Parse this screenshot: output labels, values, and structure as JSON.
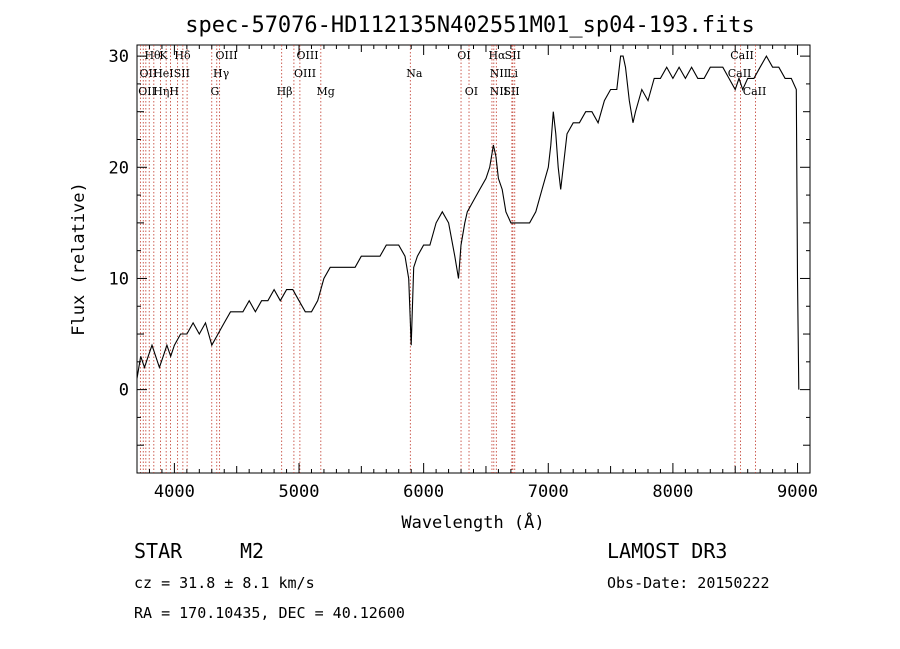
{
  "chart_data": {
    "type": "line",
    "title": "spec-57076-HD112135N402551M01_sp04-193.fits",
    "xlabel": "Wavelength (Å)",
    "ylabel": "Flux (relative)",
    "xlim": [
      3700,
      9100
    ],
    "ylim": [
      -7.5,
      31
    ],
    "xticks": [
      4000,
      5000,
      6000,
      7000,
      8000,
      9000
    ],
    "yticks": [
      0,
      10,
      20,
      30
    ],
    "grid": false,
    "series": [
      {
        "x": [
          3700,
          3730,
          3760,
          3790,
          3820,
          3850,
          3880,
          3910,
          3940,
          3970,
          4000,
          4050,
          4100,
          4150,
          4200,
          4250,
          4300,
          4350,
          4400,
          4450,
          4500,
          4550,
          4600,
          4650,
          4700,
          4750,
          4800,
          4850,
          4900,
          4950,
          5000,
          5050,
          5100,
          5150,
          5200,
          5250,
          5300,
          5350,
          5400,
          5450,
          5500,
          5550,
          5600,
          5650,
          5700,
          5750,
          5800,
          5850,
          5880,
          5900,
          5920,
          5950,
          6000,
          6050,
          6100,
          6150,
          6200,
          6250,
          6280,
          6300,
          6330,
          6350,
          6400,
          6450,
          6500,
          6530,
          6560,
          6580,
          6600,
          6630,
          6660,
          6700,
          6730,
          6760,
          6800,
          6850,
          6900,
          6950,
          7000,
          7020,
          7040,
          7060,
          7080,
          7100,
          7150,
          7200,
          7250,
          7300,
          7350,
          7400,
          7450,
          7500,
          7550,
          7580,
          7600,
          7620,
          7650,
          7680,
          7700,
          7750,
          7800,
          7850,
          7900,
          7950,
          8000,
          8050,
          8100,
          8150,
          8200,
          8250,
          8300,
          8350,
          8400,
          8450,
          8500,
          8530,
          8560,
          8600,
          8650,
          8700,
          8750,
          8800,
          8850,
          8900,
          8950,
          8990,
          9000,
          9010
        ],
        "y": [
          1,
          3,
          2,
          3,
          4,
          3,
          2,
          3,
          4,
          3,
          4,
          5,
          5,
          6,
          5,
          6,
          4,
          5,
          6,
          7,
          7,
          7,
          8,
          7,
          8,
          8,
          9,
          8,
          9,
          9,
          8,
          7,
          7,
          8,
          10,
          11,
          11,
          11,
          11,
          11,
          12,
          12,
          12,
          12,
          13,
          13,
          13,
          12,
          10,
          4,
          11,
          12,
          13,
          13,
          15,
          16,
          15,
          12,
          10,
          13,
          15,
          16,
          17,
          18,
          19,
          20,
          22,
          21,
          19,
          18,
          16,
          15,
          15,
          15,
          15,
          15,
          16,
          18,
          20,
          22,
          25,
          23,
          20,
          18,
          23,
          24,
          24,
          25,
          25,
          24,
          26,
          27,
          27,
          30,
          30,
          29,
          26,
          24,
          25,
          27,
          26,
          28,
          28,
          29,
          28,
          29,
          28,
          29,
          28,
          28,
          29,
          29,
          29,
          28,
          27,
          28,
          27,
          28,
          28,
          29,
          30,
          29,
          29,
          28,
          28,
          27,
          10,
          0
        ]
      }
    ],
    "annotations": [
      "Hθ",
      "K",
      "Hδ",
      "OIII",
      "OII",
      "HeI",
      "SII",
      "Hγ",
      "OII",
      "Hη",
      "H",
      "G",
      "OIII",
      "OIII",
      "Hβ",
      "Mg",
      "Na",
      "OI",
      "OI",
      "Hα",
      "SII",
      "NII",
      "Li",
      "NII",
      "SII",
      "CaII",
      "CaII",
      "CaII"
    ]
  },
  "info": {
    "class": "STAR",
    "subclass": "M2",
    "survey": "LAMOST DR3",
    "cz": "cz = 31.8 ± 8.1 km/s",
    "obs_date": "Obs-Date: 20150222",
    "radec": "RA = 170.10435, DEC =  40.12600"
  }
}
